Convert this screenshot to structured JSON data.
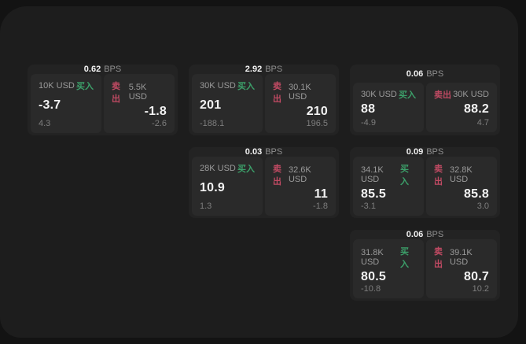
{
  "labels": {
    "bps_unit": "BPS",
    "buy": "买入",
    "sell": "卖出"
  },
  "colors": {
    "backdrop": "#131313",
    "window_background": "#1d1d1d",
    "card_background": "#232323",
    "panel_background": "#2a2a2a",
    "buy_accent": "#3ca06a",
    "sell_accent": "#c04a63",
    "value_text": "#f2f2f2",
    "muted_text": "#9a9a9a"
  },
  "cards": [
    {
      "bps": "0.62",
      "col": 1,
      "row": 1,
      "buy": {
        "amount": "10K USD",
        "price": "-3.7",
        "delta": "4.3"
      },
      "sell": {
        "amount": "5.5K USD",
        "price": "-1.8",
        "delta": "-2.6"
      }
    },
    {
      "bps": "2.92",
      "col": 2,
      "row": 1,
      "buy": {
        "amount": "30K USD",
        "price": "201",
        "delta": "-188.1"
      },
      "sell": {
        "amount": "30.1K USD",
        "price": "210",
        "delta": "196.5"
      }
    },
    {
      "bps": "0.06",
      "col": 3,
      "row": 1,
      "buy": {
        "amount": "30K USD",
        "price": "88",
        "delta": "-4.9"
      },
      "sell": {
        "amount": "30K USD",
        "price": "88.2",
        "delta": "4.7"
      }
    },
    {
      "bps": "0.03",
      "col": 2,
      "row": 2,
      "buy": {
        "amount": "28K USD",
        "price": "10.9",
        "delta": "1.3"
      },
      "sell": {
        "amount": "32.6K USD",
        "price": "11",
        "delta": "-1.8"
      }
    },
    {
      "bps": "0.09",
      "col": 3,
      "row": 2,
      "buy": {
        "amount": "34.1K USD",
        "price": "85.5",
        "delta": "-3.1"
      },
      "sell": {
        "amount": "32.8K USD",
        "price": "85.8",
        "delta": "3.0"
      }
    },
    {
      "bps": "0.06",
      "col": 3,
      "row": 3,
      "buy": {
        "amount": "31.8K USD",
        "price": "80.5",
        "delta": "-10.8"
      },
      "sell": {
        "amount": "39.1K USD",
        "price": "80.7",
        "delta": "10.2"
      }
    }
  ]
}
